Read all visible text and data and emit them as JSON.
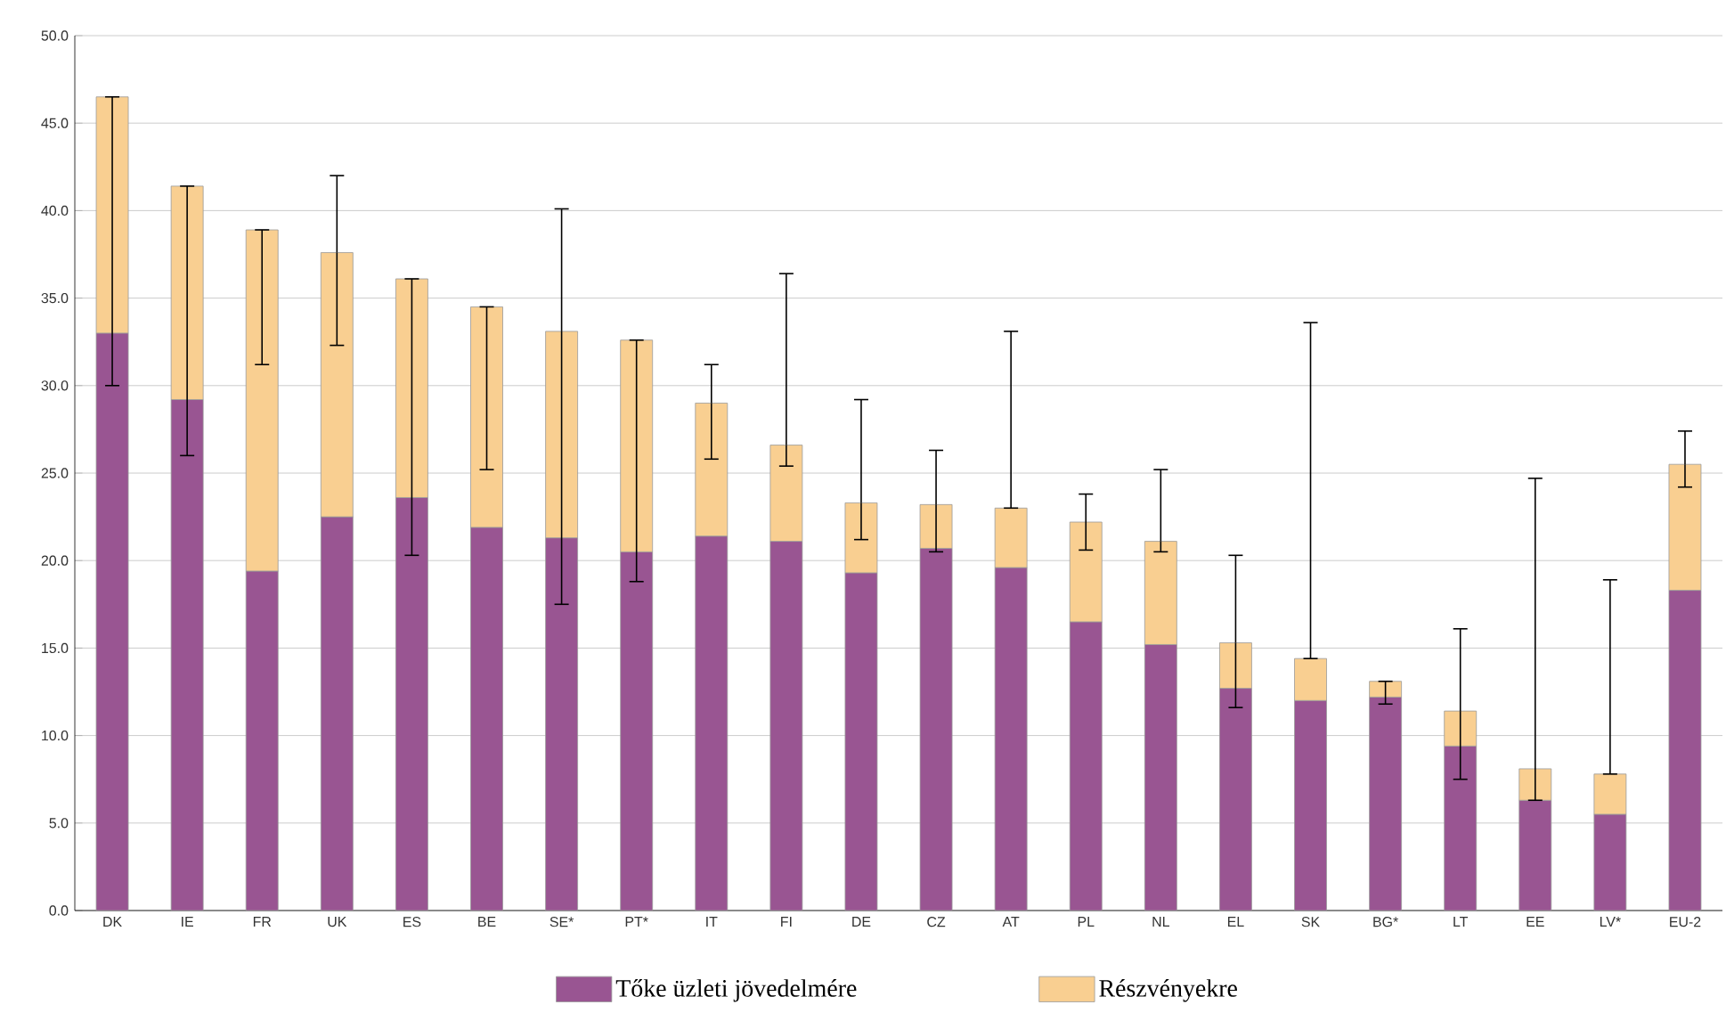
{
  "chart_data": {
    "type": "bar",
    "stacked": true,
    "categories": [
      "DK",
      "IE",
      "FR",
      "UK",
      "ES",
      "BE",
      "SE*",
      "PT*",
      "IT",
      "FI",
      "DE",
      "CZ",
      "AT",
      "PL",
      "NL",
      "EL",
      "SK",
      "BG*",
      "LT",
      "EE",
      "LV*",
      "EU-2"
    ],
    "series": [
      {
        "name": "Tőke üzleti jövedelmére",
        "color": "#995592",
        "values": [
          33.0,
          29.2,
          19.4,
          22.5,
          23.6,
          21.9,
          21.3,
          20.5,
          21.4,
          21.1,
          19.3,
          20.7,
          19.6,
          16.5,
          15.2,
          12.7,
          12.0,
          12.2,
          9.4,
          6.3,
          5.5,
          18.3
        ]
      },
      {
        "name": "Részvényekre",
        "color": "#f9cf91",
        "values": [
          13.5,
          12.2,
          19.5,
          15.1,
          12.5,
          12.6,
          11.8,
          12.1,
          7.6,
          5.5,
          4.0,
          2.5,
          3.4,
          5.7,
          5.9,
          2.6,
          2.4,
          0.9,
          2.0,
          1.8,
          2.3,
          7.2
        ],
        "errors": [
          [
            30.0,
            46.5
          ],
          [
            26.0,
            41.4
          ],
          [
            31.2,
            38.9
          ],
          [
            32.3,
            42.0
          ],
          [
            20.3,
            36.1
          ],
          [
            25.2,
            34.5
          ],
          [
            17.5,
            40.1
          ],
          [
            18.8,
            32.6
          ],
          [
            25.8,
            31.2
          ],
          [
            25.4,
            36.4
          ],
          [
            21.2,
            29.2
          ],
          [
            20.5,
            26.3
          ],
          [
            23.0,
            33.1
          ],
          [
            20.6,
            23.8
          ],
          [
            20.5,
            25.2
          ],
          [
            11.6,
            20.3
          ],
          [
            14.4,
            33.6
          ],
          [
            11.8,
            13.1
          ],
          [
            7.5,
            16.1
          ],
          [
            6.3,
            24.7
          ],
          [
            7.8,
            18.9
          ],
          [
            24.2,
            27.4
          ]
        ]
      }
    ],
    "ylim": [
      0,
      50
    ],
    "yticks": [
      {
        "value": 0,
        "label": "0.0"
      },
      {
        "value": 5,
        "label": "5.0"
      },
      {
        "value": 10,
        "label": "10.0"
      },
      {
        "value": 15,
        "label": "15.0"
      },
      {
        "value": 20,
        "label": "20.0"
      },
      {
        "value": 25,
        "label": "25.0"
      },
      {
        "value": 30,
        "label": "30.0"
      },
      {
        "value": 35,
        "label": "35.0"
      },
      {
        "value": 40,
        "label": "40.0"
      },
      {
        "value": 45,
        "label": "45.0"
      },
      {
        "value": 50,
        "label": "50.0"
      }
    ],
    "grid": "y",
    "legend": "bottom"
  }
}
